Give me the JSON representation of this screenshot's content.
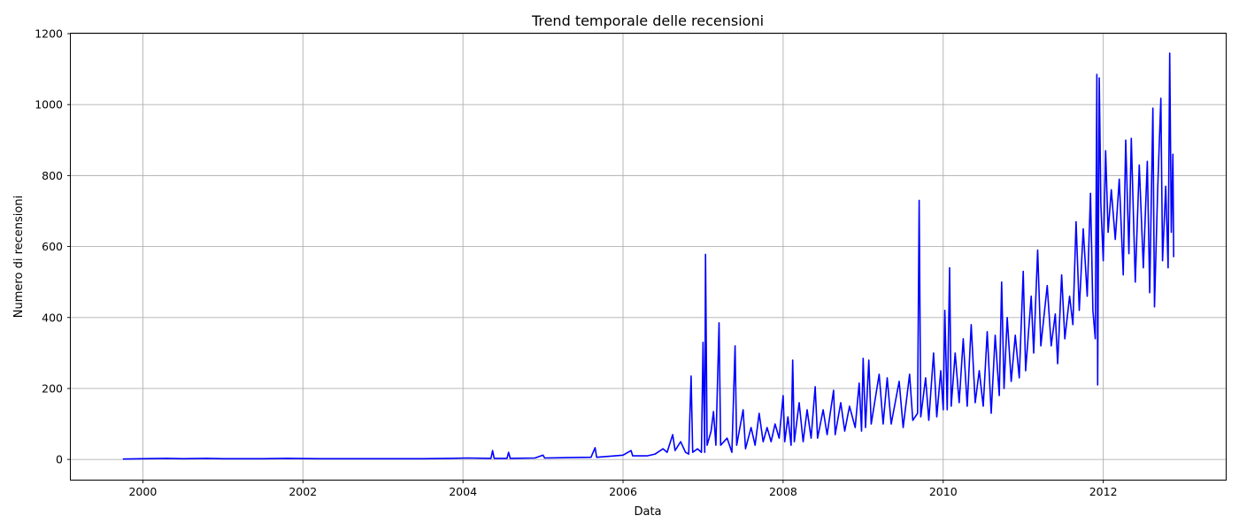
{
  "chart_data": {
    "type": "line",
    "title": "Trend temporale delle recensioni",
    "xlabel": "Data",
    "ylabel": "Numero di recensioni",
    "xlim": [
      1999.1,
      2013.53
    ],
    "ylim": [
      -57,
      1200
    ],
    "x_ticks": [
      2000,
      2002,
      2004,
      2006,
      2008,
      2010,
      2012
    ],
    "x_tick_labels": [
      "2000",
      "2002",
      "2004",
      "2006",
      "2008",
      "2010",
      "2012"
    ],
    "y_ticks": [
      0,
      200,
      400,
      600,
      800,
      1000,
      1200
    ],
    "y_tick_labels": [
      "0",
      "200",
      "400",
      "600",
      "800",
      "1000",
      "1200"
    ],
    "grid": true,
    "color": "#0000ff",
    "series": [
      {
        "points": [
          [
            1999.75,
            1
          ],
          [
            2000.0,
            2
          ],
          [
            2000.3,
            3
          ],
          [
            2000.5,
            2
          ],
          [
            2000.8,
            3
          ],
          [
            2001.0,
            2
          ],
          [
            2001.5,
            2
          ],
          [
            2001.8,
            3
          ],
          [
            2002.2,
            2
          ],
          [
            2002.6,
            2
          ],
          [
            2003.0,
            2
          ],
          [
            2003.5,
            2
          ],
          [
            2003.85,
            3
          ],
          [
            2004.05,
            4
          ],
          [
            2004.35,
            3
          ],
          [
            2004.37,
            25
          ],
          [
            2004.39,
            3
          ],
          [
            2004.55,
            3
          ],
          [
            2004.57,
            20
          ],
          [
            2004.59,
            3
          ],
          [
            2004.9,
            4
          ],
          [
            2005.0,
            12
          ],
          [
            2005.02,
            4
          ],
          [
            2005.3,
            5
          ],
          [
            2005.6,
            6
          ],
          [
            2005.65,
            33
          ],
          [
            2005.67,
            6
          ],
          [
            2005.9,
            10
          ],
          [
            2006.0,
            12
          ],
          [
            2006.1,
            25
          ],
          [
            2006.12,
            10
          ],
          [
            2006.3,
            10
          ],
          [
            2006.4,
            15
          ],
          [
            2006.5,
            30
          ],
          [
            2006.55,
            20
          ],
          [
            2006.62,
            70
          ],
          [
            2006.65,
            25
          ],
          [
            2006.72,
            50
          ],
          [
            2006.78,
            20
          ],
          [
            2006.82,
            15
          ],
          [
            2006.85,
            235
          ],
          [
            2006.87,
            20
          ],
          [
            2006.93,
            30
          ],
          [
            2006.98,
            20
          ],
          [
            2007.0,
            330
          ],
          [
            2007.02,
            20
          ],
          [
            2007.03,
            578
          ],
          [
            2007.05,
            40
          ],
          [
            2007.1,
            80
          ],
          [
            2007.13,
            135
          ],
          [
            2007.16,
            40
          ],
          [
            2007.2,
            385
          ],
          [
            2007.22,
            40
          ],
          [
            2007.3,
            60
          ],
          [
            2007.36,
            20
          ],
          [
            2007.4,
            320
          ],
          [
            2007.42,
            40
          ],
          [
            2007.5,
            140
          ],
          [
            2007.53,
            30
          ],
          [
            2007.6,
            90
          ],
          [
            2007.65,
            40
          ],
          [
            2007.7,
            130
          ],
          [
            2007.75,
            50
          ],
          [
            2007.8,
            90
          ],
          [
            2007.85,
            50
          ],
          [
            2007.9,
            100
          ],
          [
            2007.95,
            60
          ],
          [
            2008.0,
            180
          ],
          [
            2008.02,
            50
          ],
          [
            2008.06,
            120
          ],
          [
            2008.1,
            40
          ],
          [
            2008.12,
            280
          ],
          [
            2008.14,
            50
          ],
          [
            2008.2,
            160
          ],
          [
            2008.25,
            50
          ],
          [
            2008.3,
            140
          ],
          [
            2008.35,
            60
          ],
          [
            2008.4,
            205
          ],
          [
            2008.43,
            60
          ],
          [
            2008.5,
            140
          ],
          [
            2008.55,
            70
          ],
          [
            2008.63,
            195
          ],
          [
            2008.65,
            70
          ],
          [
            2008.72,
            160
          ],
          [
            2008.77,
            80
          ],
          [
            2008.83,
            150
          ],
          [
            2008.9,
            90
          ],
          [
            2008.95,
            215
          ],
          [
            2008.98,
            80
          ],
          [
            2009.0,
            285
          ],
          [
            2009.03,
            90
          ],
          [
            2009.07,
            280
          ],
          [
            2009.1,
            100
          ],
          [
            2009.2,
            240
          ],
          [
            2009.25,
            100
          ],
          [
            2009.3,
            230
          ],
          [
            2009.35,
            100
          ],
          [
            2009.45,
            220
          ],
          [
            2009.5,
            90
          ],
          [
            2009.58,
            240
          ],
          [
            2009.62,
            110
          ],
          [
            2009.68,
            130
          ],
          [
            2009.7,
            730
          ],
          [
            2009.72,
            120
          ],
          [
            2009.78,
            230
          ],
          [
            2009.82,
            110
          ],
          [
            2009.88,
            300
          ],
          [
            2009.92,
            120
          ],
          [
            2009.97,
            250
          ],
          [
            2010.0,
            140
          ],
          [
            2010.02,
            420
          ],
          [
            2010.05,
            140
          ],
          [
            2010.08,
            540
          ],
          [
            2010.1,
            150
          ],
          [
            2010.15,
            300
          ],
          [
            2010.2,
            160
          ],
          [
            2010.25,
            340
          ],
          [
            2010.3,
            150
          ],
          [
            2010.35,
            380
          ],
          [
            2010.4,
            160
          ],
          [
            2010.45,
            250
          ],
          [
            2010.5,
            150
          ],
          [
            2010.55,
            360
          ],
          [
            2010.6,
            130
          ],
          [
            2010.65,
            350
          ],
          [
            2010.7,
            180
          ],
          [
            2010.73,
            500
          ],
          [
            2010.76,
            200
          ],
          [
            2010.8,
            400
          ],
          [
            2010.85,
            220
          ],
          [
            2010.9,
            350
          ],
          [
            2010.95,
            230
          ],
          [
            2011.0,
            530
          ],
          [
            2011.03,
            250
          ],
          [
            2011.1,
            460
          ],
          [
            2011.13,
            300
          ],
          [
            2011.18,
            590
          ],
          [
            2011.22,
            320
          ],
          [
            2011.3,
            490
          ],
          [
            2011.35,
            320
          ],
          [
            2011.4,
            410
          ],
          [
            2011.43,
            270
          ],
          [
            2011.48,
            520
          ],
          [
            2011.52,
            340
          ],
          [
            2011.58,
            460
          ],
          [
            2011.62,
            380
          ],
          [
            2011.66,
            670
          ],
          [
            2011.7,
            420
          ],
          [
            2011.75,
            650
          ],
          [
            2011.8,
            460
          ],
          [
            2011.84,
            750
          ],
          [
            2011.87,
            420
          ],
          [
            2011.9,
            340
          ],
          [
            2011.92,
            1085
          ],
          [
            2011.93,
            210
          ],
          [
            2011.95,
            1075
          ],
          [
            2011.97,
            720
          ],
          [
            2012.0,
            560
          ],
          [
            2012.03,
            870
          ],
          [
            2012.06,
            640
          ],
          [
            2012.1,
            760
          ],
          [
            2012.15,
            620
          ],
          [
            2012.2,
            790
          ],
          [
            2012.25,
            520
          ],
          [
            2012.28,
            900
          ],
          [
            2012.32,
            580
          ],
          [
            2012.35,
            905
          ],
          [
            2012.4,
            500
          ],
          [
            2012.45,
            830
          ],
          [
            2012.5,
            540
          ],
          [
            2012.55,
            840
          ],
          [
            2012.58,
            470
          ],
          [
            2012.62,
            990
          ],
          [
            2012.64,
            430
          ],
          [
            2012.68,
            760
          ],
          [
            2012.72,
            1018
          ],
          [
            2012.74,
            560
          ],
          [
            2012.78,
            770
          ],
          [
            2012.81,
            540
          ],
          [
            2012.83,
            1145
          ],
          [
            2012.85,
            640
          ],
          [
            2012.87,
            860
          ],
          [
            2012.88,
            570
          ]
        ]
      }
    ]
  }
}
